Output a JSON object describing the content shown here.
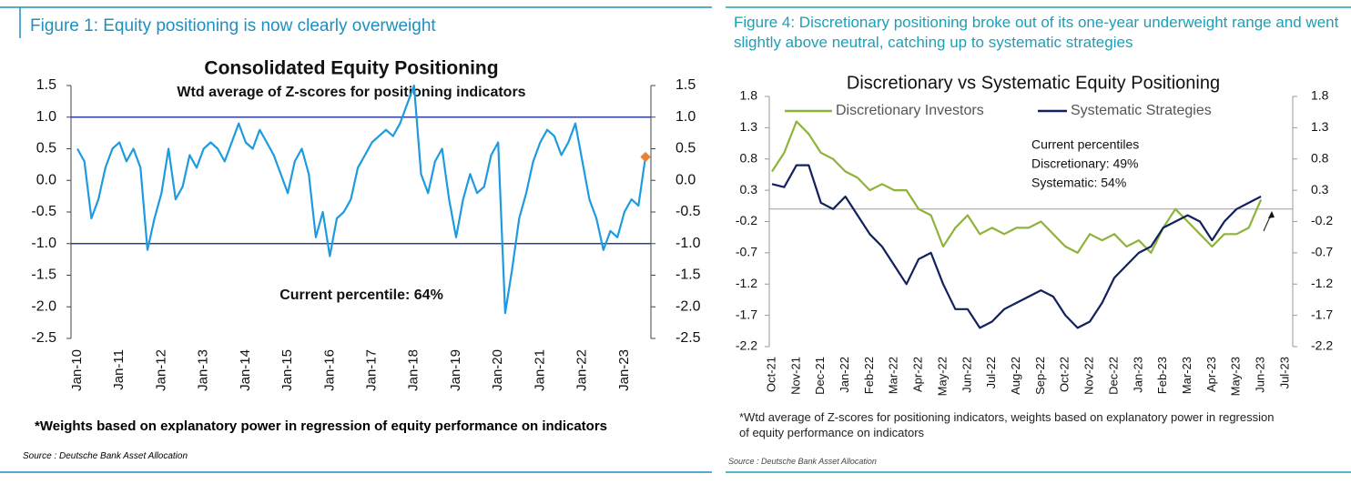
{
  "chart_data": [
    {
      "type": "line",
      "caption": "Figure 1: Equity positioning is now clearly overweight",
      "title": "Consolidated Equity Positioning",
      "subtitle": "Wtd average of Z-scores for positioning indicators",
      "annotations": [
        "Current percentile: 64%"
      ],
      "footnote": "*Weights based on explanatory power in regression of equity performance on indicators",
      "source": "Source : Deutsche Bank Asset Allocation",
      "x": [
        "Jan-10",
        null,
        null,
        null,
        null,
        null,
        "Jan-11",
        null,
        null,
        null,
        null,
        null,
        "Jan-12",
        null,
        null,
        null,
        null,
        null,
        "Jan-13",
        null,
        null,
        null,
        null,
        null,
        "Jan-14",
        null,
        null,
        null,
        null,
        null,
        "Jan-15",
        null,
        null,
        null,
        null,
        null,
        "Jan-16",
        null,
        null,
        null,
        null,
        null,
        "Jan-17",
        null,
        null,
        null,
        null,
        null,
        "Jan-18",
        null,
        null,
        null,
        null,
        null,
        "Jan-19",
        null,
        null,
        null,
        null,
        null,
        "Jan-20",
        null,
        null,
        null,
        null,
        null,
        "Jan-21",
        null,
        null,
        null,
        null,
        null,
        "Jan-22",
        null,
        null,
        null,
        null,
        null,
        "Jan-23",
        null,
        null,
        null
      ],
      "series": [
        {
          "name": "Consolidated Equity Positioning",
          "color": "#1e9be0",
          "values": [
            0.5,
            0.3,
            -0.6,
            -0.3,
            0.2,
            0.5,
            0.6,
            0.3,
            0.5,
            0.2,
            -1.1,
            -0.6,
            -0.2,
            0.5,
            -0.3,
            -0.1,
            0.4,
            0.2,
            0.5,
            0.6,
            0.5,
            0.3,
            0.6,
            0.9,
            0.6,
            0.5,
            0.8,
            0.6,
            0.4,
            0.1,
            -0.2,
            0.3,
            0.5,
            0.1,
            -0.9,
            -0.5,
            -1.2,
            -0.6,
            -0.5,
            -0.3,
            0.2,
            0.4,
            0.6,
            0.7,
            0.8,
            0.7,
            0.9,
            1.2,
            1.5,
            0.1,
            -0.2,
            0.3,
            0.5,
            -0.3,
            -0.9,
            -0.3,
            0.1,
            -0.2,
            -0.1,
            0.4,
            0.6,
            -2.1,
            -1.4,
            -0.6,
            -0.2,
            0.3,
            0.6,
            0.8,
            0.7,
            0.4,
            0.6,
            0.9,
            0.3,
            -0.3,
            -0.6,
            -1.1,
            -0.8,
            -0.9,
            -0.5,
            -0.3,
            -0.4,
            0.37
          ]
        }
      ],
      "end_marker_color": "#e8803a",
      "hlines": [
        1,
        -1
      ],
      "hline_color": "#2e3f9e",
      "ylim": [
        -2.5,
        1.5
      ],
      "yticks": [
        -2.5,
        {
          "value": -2,
          "label": "-2.0"
        },
        -1.5,
        {
          "value": -1,
          "label": "-1.0"
        },
        -0.5,
        {
          "value": 0,
          "label": "0.0"
        },
        0.5,
        {
          "value": 1,
          "label": "1.0"
        },
        1.5
      ],
      "y2lim": [
        -2.5,
        1.5
      ],
      "y2ticks": [
        -2.5,
        {
          "value": -2,
          "label": "-2.0"
        },
        -1.5,
        {
          "value": -1,
          "label": "-1.0"
        },
        -0.5,
        {
          "value": 0,
          "label": "0.0"
        },
        0.5,
        {
          "value": 1,
          "label": "1.0"
        },
        1.5
      ],
      "legend": false
    },
    {
      "type": "line",
      "caption": "Figure 4: Discretionary positioning broke out of its one-year underweight range and went slightly above neutral, catching up to systematic strategies",
      "title": "Discretionary  vs Systematic Equity Positioning",
      "annotations": [
        "Current percentiles",
        "Discretionary: 49%",
        "Systematic: 54%"
      ],
      "footnote": "*Wtd average of Z-scores for positioning indicators, weights based on explanatory power in regression of equity performance on indicators",
      "source": "Source : Deutsche Bank Asset Allocation",
      "x": [
        "Oct-21",
        null,
        "Nov-21",
        null,
        "Dec-21",
        null,
        "Jan-22",
        null,
        "Feb-22",
        null,
        "Mar-22",
        null,
        "Apr-22",
        null,
        "May-22",
        null,
        "Jun-22",
        null,
        "Jul-22",
        null,
        "Aug-22",
        null,
        "Sep-22",
        null,
        "Oct-22",
        null,
        "Nov-22",
        null,
        "Dec-22",
        null,
        "Jan-23",
        null,
        "Feb-23",
        null,
        "Mar-23",
        null,
        "Apr-23",
        null,
        "May-23",
        null,
        "Jun-23",
        null,
        "Jul-23"
      ],
      "series": [
        {
          "name": "Discretionary Investors",
          "color": "#8db33a",
          "values": [
            0.6,
            0.9,
            1.4,
            1.2,
            0.9,
            0.8,
            0.6,
            0.5,
            0.3,
            0.4,
            0.3,
            0.3,
            0.0,
            -0.1,
            -0.6,
            -0.3,
            -0.1,
            -0.4,
            -0.3,
            -0.4,
            -0.3,
            -0.3,
            -0.2,
            -0.4,
            -0.6,
            -0.7,
            -0.4,
            -0.5,
            -0.4,
            -0.6,
            -0.5,
            -0.7,
            -0.3,
            0.0,
            -0.2,
            -0.4,
            -0.6,
            -0.4,
            -0.4,
            -0.3,
            0.15,
            null,
            null
          ]
        },
        {
          "name": "Systematic Strategies",
          "color": "#13205e",
          "values": [
            0.4,
            0.35,
            0.7,
            0.7,
            0.1,
            0.0,
            0.2,
            -0.1,
            -0.4,
            -0.6,
            -0.9,
            -1.2,
            -0.8,
            -0.7,
            -1.2,
            -1.6,
            -1.6,
            -1.9,
            -1.8,
            -1.6,
            -1.5,
            -1.4,
            -1.3,
            -1.4,
            -1.7,
            -1.9,
            -1.8,
            -1.5,
            -1.1,
            -0.9,
            -0.7,
            -0.6,
            -0.3,
            -0.2,
            -0.1,
            -0.2,
            -0.5,
            -0.2,
            0.0,
            0.1,
            0.2,
            null,
            null
          ]
        }
      ],
      "hlines": [
        0
      ],
      "hline_color": "#9a9a9a",
      "ylim": [
        -2.2,
        1.8
      ],
      "yticks": [
        -2.2,
        -1.7,
        -1.2,
        -0.7,
        -0.2,
        0.3,
        0.8,
        1.3,
        1.8
      ],
      "y2lim": [
        -2.2,
        1.8
      ],
      "y2ticks": [
        -2.2,
        -1.7,
        -1.2,
        -0.7,
        -0.2,
        0.3,
        0.8,
        1.3,
        1.8
      ],
      "legend": true
    }
  ]
}
